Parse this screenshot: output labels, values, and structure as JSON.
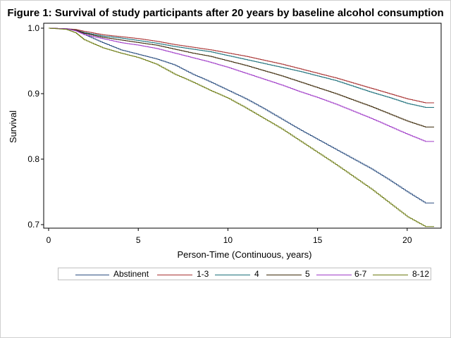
{
  "chart_data": {
    "type": "line",
    "title": "Figure 1: Survival of study participants after 20 years by baseline alcohol consumption",
    "xlabel": "Person-Time (Continuous, years)",
    "ylabel": "Survival",
    "xlim": [
      0,
      21.5
    ],
    "ylim": [
      0.695,
      1.0
    ],
    "xticks": [
      0,
      5,
      10,
      15,
      20
    ],
    "yticks": [
      0.7,
      0.8,
      0.9,
      1.0
    ],
    "ytick_labels": [
      "0.7",
      "0.8",
      "0.9",
      "1.0"
    ],
    "grid": false,
    "legend_position": "bottom",
    "series": [
      {
        "name": "Abstinent",
        "color": "#2c4f80",
        "x": [
          0,
          1,
          1.5,
          2,
          3,
          4,
          5,
          6,
          7,
          8,
          9,
          10,
          11,
          12,
          13,
          14,
          15,
          16,
          17,
          18,
          19,
          20,
          21,
          21.5
        ],
        "y": [
          1.0,
          0.999,
          0.997,
          0.99,
          0.978,
          0.967,
          0.96,
          0.953,
          0.944,
          0.93,
          0.918,
          0.905,
          0.892,
          0.877,
          0.861,
          0.845,
          0.83,
          0.815,
          0.8,
          0.785,
          0.768,
          0.75,
          0.733,
          0.733
        ]
      },
      {
        "name": "1-3",
        "color": "#a83232",
        "x": [
          0,
          1,
          1.5,
          2,
          3,
          4,
          5,
          6,
          7,
          8,
          9,
          10,
          11,
          12,
          13,
          14,
          15,
          16,
          17,
          18,
          19,
          20,
          21,
          21.5
        ],
        "y": [
          1.0,
          0.999,
          0.998,
          0.995,
          0.99,
          0.987,
          0.984,
          0.98,
          0.975,
          0.971,
          0.967,
          0.962,
          0.957,
          0.951,
          0.945,
          0.938,
          0.931,
          0.924,
          0.916,
          0.908,
          0.9,
          0.892,
          0.886,
          0.886
        ]
      },
      {
        "name": "4",
        "color": "#1b6f7a",
        "x": [
          0,
          1,
          1.5,
          2,
          3,
          4,
          5,
          6,
          7,
          8,
          9,
          10,
          11,
          12,
          13,
          14,
          15,
          16,
          17,
          18,
          19,
          20,
          21,
          21.5
        ],
        "y": [
          1.0,
          0.999,
          0.997,
          0.993,
          0.988,
          0.985,
          0.981,
          0.977,
          0.972,
          0.968,
          0.964,
          0.958,
          0.952,
          0.946,
          0.94,
          0.934,
          0.927,
          0.92,
          0.911,
          0.902,
          0.894,
          0.885,
          0.879,
          0.879
        ]
      },
      {
        "name": "5",
        "color": "#3d2a0a",
        "x": [
          0,
          1,
          1.5,
          2,
          3,
          4,
          5,
          6,
          7,
          8,
          9,
          10,
          11,
          12,
          13,
          14,
          15,
          16,
          17,
          18,
          19,
          20,
          21,
          21.5
        ],
        "y": [
          1.0,
          0.999,
          0.997,
          0.992,
          0.986,
          0.982,
          0.978,
          0.974,
          0.968,
          0.962,
          0.957,
          0.95,
          0.943,
          0.935,
          0.927,
          0.918,
          0.909,
          0.9,
          0.89,
          0.88,
          0.869,
          0.858,
          0.849,
          0.849
        ]
      },
      {
        "name": "6-7",
        "color": "#a03cc8",
        "x": [
          0,
          1,
          1.5,
          2,
          3,
          4,
          5,
          6,
          7,
          8,
          9,
          10,
          11,
          12,
          13,
          14,
          15,
          16,
          17,
          18,
          19,
          20,
          21,
          21.5
        ],
        "y": [
          1.0,
          0.999,
          0.996,
          0.99,
          0.984,
          0.978,
          0.974,
          0.969,
          0.962,
          0.955,
          0.948,
          0.94,
          0.931,
          0.922,
          0.913,
          0.903,
          0.894,
          0.884,
          0.873,
          0.862,
          0.85,
          0.838,
          0.827,
          0.827
        ]
      },
      {
        "name": "8-12",
        "color": "#6b7a10",
        "x": [
          0,
          1,
          1.5,
          2,
          3,
          4,
          5,
          6,
          7,
          8,
          9,
          10,
          11,
          12,
          13,
          14,
          15,
          16,
          17,
          18,
          19,
          20,
          21,
          21.5
        ],
        "y": [
          1.0,
          0.998,
          0.993,
          0.982,
          0.97,
          0.962,
          0.955,
          0.945,
          0.93,
          0.918,
          0.905,
          0.893,
          0.878,
          0.862,
          0.846,
          0.828,
          0.81,
          0.792,
          0.773,
          0.754,
          0.733,
          0.712,
          0.697,
          0.697
        ]
      }
    ]
  }
}
